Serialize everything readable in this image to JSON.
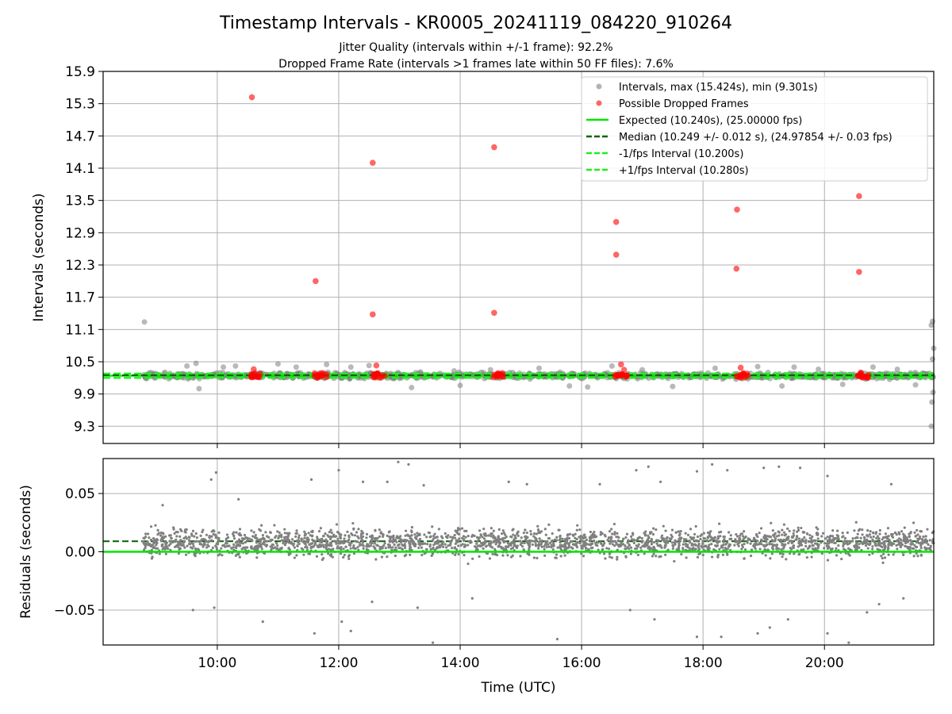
{
  "figure": {
    "title": "Timestamp Intervals - KR0005_20241119_084220_910264",
    "subtitle_1": "Jitter Quality (intervals within +/-1 frame): 92.2%",
    "subtitle_2": "Dropped Frame Rate (intervals >1 frames late within 50 FF files): 7.6%"
  },
  "colors": {
    "intervals": "#808080",
    "dropped": "#ff0000",
    "expected": "#00e600",
    "median": "#006400",
    "fps_bounds": "#22ee22",
    "grid": "#b0b0b0"
  },
  "chart_data": [
    {
      "type": "scatter",
      "panel": "top",
      "ylabel": "Intervals (seconds)",
      "xlabel": "",
      "x_unit": "hours UTC",
      "xlim": [
        8.12,
        21.8
      ],
      "ylim": [
        8.98,
        15.9
      ],
      "yticks": [
        9.3,
        9.9,
        10.5,
        11.1,
        11.7,
        12.3,
        12.9,
        13.5,
        14.1,
        14.7,
        15.3,
        15.9
      ],
      "ytick_labels": [
        "9.3",
        "9.9",
        "10.5",
        "11.1",
        "11.7",
        "12.3",
        "12.9",
        "13.5",
        "14.1",
        "14.7",
        "15.3",
        "15.9"
      ],
      "grid": true,
      "legend_position": "top-right",
      "legend": [
        {
          "label": "Intervals, max (15.424s), min (9.301s)",
          "kind": "marker",
          "color": "#808080"
        },
        {
          "label": "Possible Dropped Frames",
          "kind": "marker",
          "color": "#ff0000"
        },
        {
          "label": "Expected (10.240s), (25.00000 fps)",
          "kind": "solid",
          "color": "#00e600"
        },
        {
          "label": "Median (10.249 +/- 0.012 s), (24.97854 +/- 0.03 fps)",
          "kind": "dashed",
          "color": "#006400"
        },
        {
          "label": "-1/fps Interval (10.200s)",
          "kind": "dashed",
          "color": "#22ee22"
        },
        {
          "label": "+1/fps Interval (10.280s)",
          "kind": "dashed",
          "color": "#22ee22"
        }
      ],
      "lines": {
        "expected": 10.24,
        "median": 10.249,
        "minus_fps": 10.2,
        "plus_fps": 10.28
      },
      "series": [
        {
          "name": "Intervals, max (15.424s), min (9.301s)",
          "points": [
            [
              8.8,
              11.24
            ],
            [
              21.78,
              11.25
            ],
            [
              21.76,
              11.18
            ],
            [
              21.8,
              10.75
            ],
            [
              21.78,
              10.55
            ],
            [
              21.79,
              9.93
            ],
            [
              21.77,
              9.75
            ],
            [
              21.76,
              9.3
            ],
            [
              9.5,
              10.42
            ],
            [
              9.65,
              10.47
            ],
            [
              9.7,
              10.0
            ],
            [
              10.1,
              10.4
            ],
            [
              10.3,
              10.42
            ],
            [
              11.0,
              10.46
            ],
            [
              11.3,
              10.4
            ],
            [
              11.8,
              10.45
            ],
            [
              12.2,
              10.4
            ],
            [
              12.5,
              10.43
            ],
            [
              13.2,
              10.02
            ],
            [
              13.9,
              10.33
            ],
            [
              14.0,
              10.06
            ],
            [
              14.5,
              10.35
            ],
            [
              15.3,
              10.38
            ],
            [
              15.8,
              10.05
            ],
            [
              16.1,
              10.03
            ],
            [
              16.5,
              10.42
            ],
            [
              17.0,
              10.35
            ],
            [
              17.5,
              10.04
            ],
            [
              18.2,
              10.38
            ],
            [
              18.9,
              10.41
            ],
            [
              19.3,
              10.05
            ],
            [
              19.5,
              10.4
            ],
            [
              19.9,
              10.36
            ],
            [
              20.3,
              10.08
            ],
            [
              20.8,
              10.4
            ],
            [
              21.2,
              10.36
            ],
            [
              21.5,
              10.07
            ]
          ]
        },
        {
          "name": "Possible Dropped Frames",
          "points": [
            [
              10.57,
              15.42
            ],
            [
              12.56,
              14.2
            ],
            [
              14.56,
              14.49
            ],
            [
              16.57,
              13.1
            ],
            [
              16.57,
              12.49
            ],
            [
              18.56,
              13.33
            ],
            [
              18.55,
              12.23
            ],
            [
              20.57,
              13.58
            ],
            [
              20.57,
              12.17
            ],
            [
              11.62,
              12.0
            ],
            [
              12.56,
              11.38
            ],
            [
              14.56,
              11.41
            ],
            [
              10.6,
              10.36
            ],
            [
              12.62,
              10.43
            ],
            [
              16.65,
              10.45
            ],
            [
              16.7,
              10.35
            ],
            [
              18.62,
              10.39
            ],
            [
              20.6,
              10.3
            ]
          ]
        }
      ]
    },
    {
      "type": "scatter",
      "panel": "bottom",
      "ylabel": "Residuals (seconds)",
      "xlabel": "Time (UTC)",
      "x_unit": "hours UTC",
      "xlim": [
        8.12,
        21.8
      ],
      "ylim": [
        -0.08,
        0.08
      ],
      "yticks": [
        -0.05,
        0.0,
        0.05
      ],
      "ytick_labels": [
        "−0.05",
        "0.00",
        "0.05"
      ],
      "xticks": [
        10,
        12,
        14,
        16,
        18,
        20
      ],
      "xtick_labels": [
        "10:00",
        "12:00",
        "14:00",
        "16:00",
        "18:00",
        "20:00"
      ],
      "grid": true,
      "lines": {
        "expected": 0.0,
        "median": 0.009
      },
      "series": [
        {
          "name": "Residuals",
          "points": [
            [
              9.1,
              0.04
            ],
            [
              9.9,
              0.062
            ],
            [
              9.98,
              0.068
            ],
            [
              10.35,
              0.045
            ],
            [
              11.55,
              0.062
            ],
            [
              12.0,
              0.07
            ],
            [
              12.4,
              0.06
            ],
            [
              12.8,
              0.06
            ],
            [
              12.98,
              0.077
            ],
            [
              13.15,
              0.075
            ],
            [
              13.4,
              0.057
            ],
            [
              14.8,
              0.06
            ],
            [
              15.1,
              0.058
            ],
            [
              16.3,
              0.058
            ],
            [
              16.9,
              0.07
            ],
            [
              17.1,
              0.073
            ],
            [
              17.3,
              0.06
            ],
            [
              17.9,
              0.069
            ],
            [
              18.15,
              0.075
            ],
            [
              18.4,
              0.07
            ],
            [
              19.0,
              0.072
            ],
            [
              19.25,
              0.073
            ],
            [
              19.6,
              0.072
            ],
            [
              20.05,
              0.065
            ],
            [
              21.1,
              0.058
            ],
            [
              9.6,
              -0.05
            ],
            [
              9.95,
              -0.048
            ],
            [
              10.75,
              -0.06
            ],
            [
              11.6,
              -0.07
            ],
            [
              12.05,
              -0.06
            ],
            [
              12.2,
              -0.068
            ],
            [
              12.55,
              -0.043
            ],
            [
              13.3,
              -0.048
            ],
            [
              13.55,
              -0.078
            ],
            [
              14.2,
              -0.04
            ],
            [
              15.6,
              -0.075
            ],
            [
              16.8,
              -0.05
            ],
            [
              17.2,
              -0.058
            ],
            [
              17.9,
              -0.073
            ],
            [
              18.3,
              -0.073
            ],
            [
              18.9,
              -0.07
            ],
            [
              19.1,
              -0.065
            ],
            [
              19.4,
              -0.058
            ],
            [
              20.05,
              -0.07
            ],
            [
              20.4,
              -0.078
            ],
            [
              20.7,
              -0.052
            ],
            [
              20.9,
              -0.045
            ],
            [
              21.3,
              -0.04
            ]
          ]
        }
      ]
    }
  ]
}
